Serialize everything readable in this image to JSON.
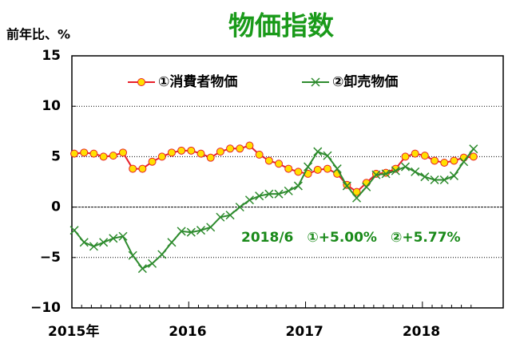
{
  "chart_data": {
    "type": "line",
    "title": "物価指数",
    "y_label": "前年比、%",
    "annotation": "2018/6　①+5.00%　②+5.77%",
    "categories": [
      "2015年",
      null,
      null,
      null,
      null,
      null,
      null,
      null,
      null,
      null,
      null,
      null,
      "2016",
      null,
      null,
      null,
      null,
      null,
      null,
      null,
      null,
      null,
      null,
      null,
      "2017",
      null,
      null,
      null,
      null,
      null,
      null,
      null,
      null,
      null,
      null,
      null,
      "2018",
      null,
      null,
      null,
      null,
      null
    ],
    "series": [
      {
        "name": "①消費者物価",
        "color": "#e8202a",
        "marker_color": "#ffe000",
        "marker": "circle",
        "values": [
          5.3,
          5.4,
          5.3,
          5.0,
          5.1,
          5.4,
          3.8,
          3.8,
          4.5,
          5.0,
          5.4,
          5.6,
          5.6,
          5.3,
          4.9,
          5.5,
          5.8,
          5.8,
          6.1,
          5.2,
          4.6,
          4.3,
          3.8,
          3.5,
          3.3,
          3.7,
          3.8,
          3.3,
          2.2,
          1.5,
          2.4,
          3.3,
          3.4,
          3.8,
          5.0,
          5.3,
          5.1,
          4.6,
          4.4,
          4.6,
          4.9,
          5.0
        ]
      },
      {
        "name": "②卸売物価",
        "color": "#2e8b2e",
        "marker_color": "#2e8b2e",
        "marker": "x",
        "values": [
          -2.3,
          -3.5,
          -3.9,
          -3.5,
          -3.1,
          -2.9,
          -4.8,
          -6.1,
          -5.6,
          -4.7,
          -3.5,
          -2.4,
          -2.5,
          -2.3,
          -2.0,
          -1.0,
          -0.8,
          0.0,
          0.7,
          1.1,
          1.3,
          1.3,
          1.6,
          2.1,
          4.0,
          5.5,
          5.1,
          3.8,
          2.1,
          0.9,
          2.0,
          3.2,
          3.3,
          3.6,
          4.0,
          3.5,
          3.0,
          2.7,
          2.7,
          3.1,
          4.5,
          5.77
        ]
      }
    ],
    "ylim": [
      -10,
      15
    ],
    "yticks": [
      {
        "value": -10,
        "label": "−10"
      },
      {
        "value": -5,
        "label": "−5"
      },
      0,
      5,
      10,
      15
    ],
    "grid": true
  }
}
